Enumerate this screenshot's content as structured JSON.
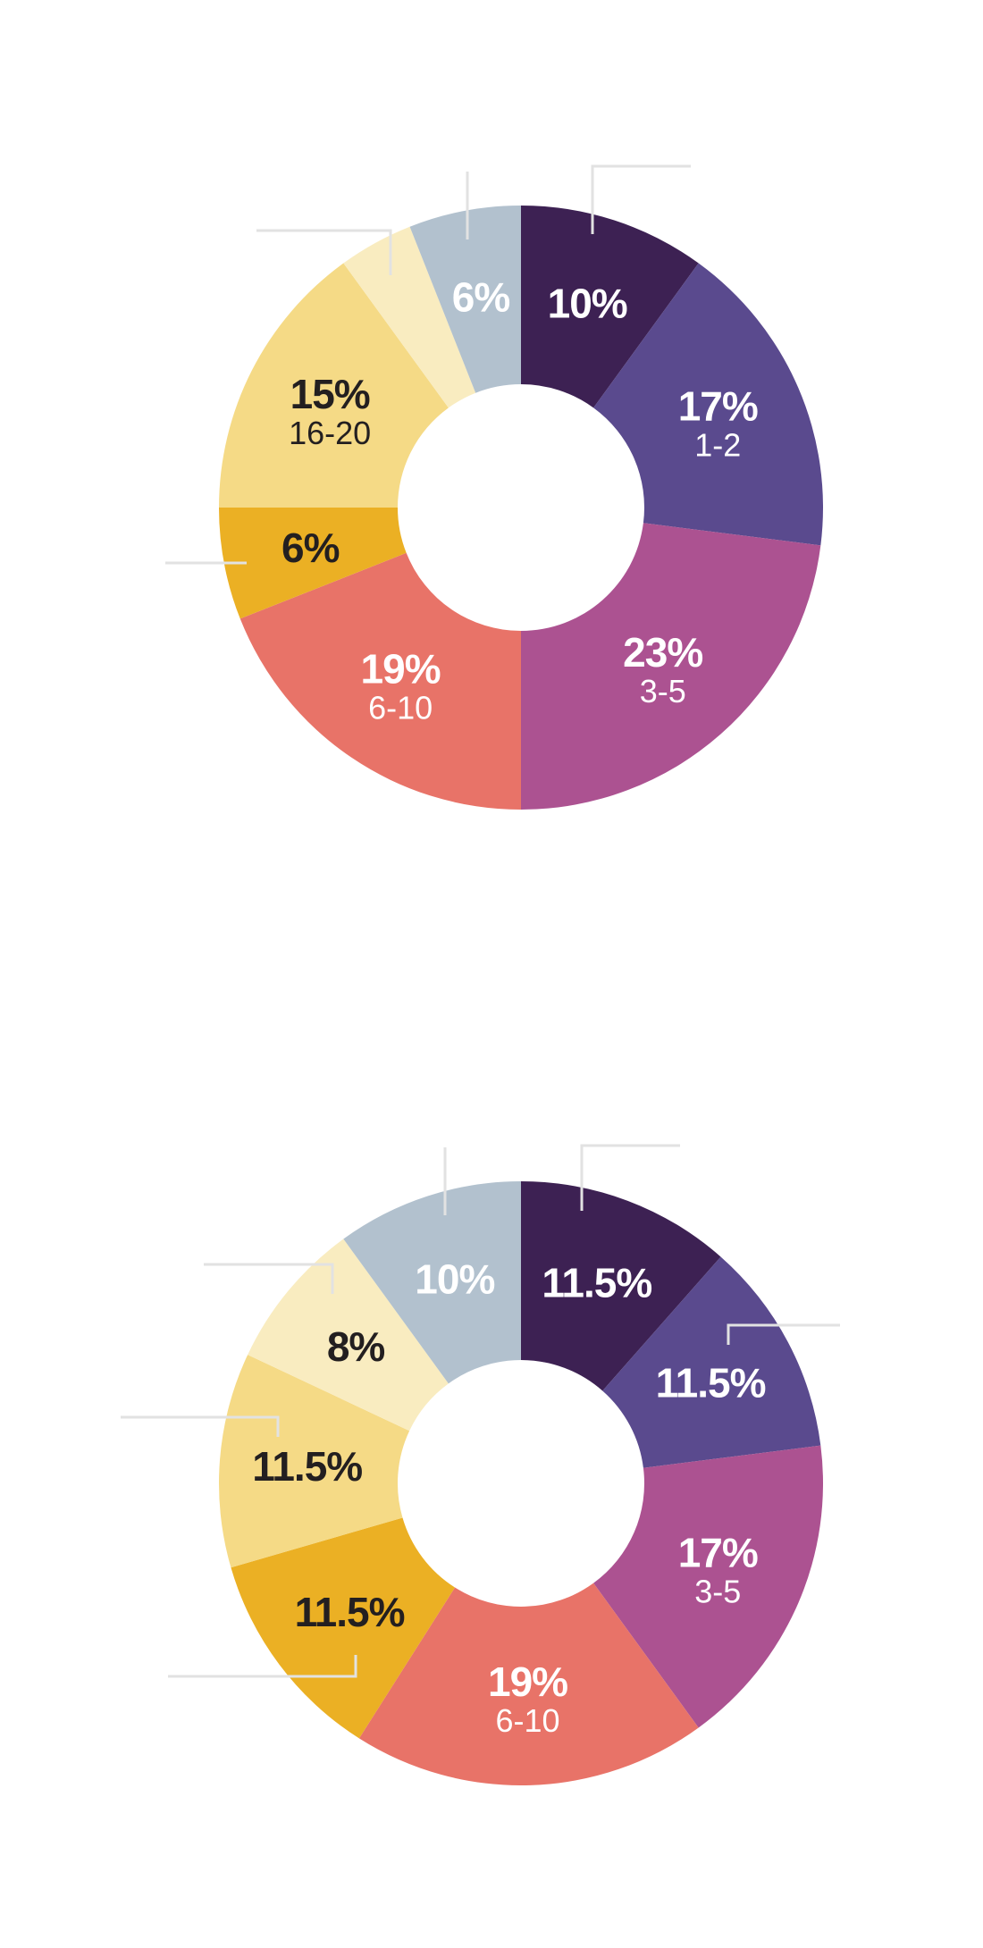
{
  "colors": {
    "dark_purple": "#3d2153",
    "purple": "#5a4a8e",
    "magenta": "#ac5291",
    "coral": "#e87368",
    "gold": "#ebb024",
    "yellow": "#f5da86",
    "pale_yellow": "#f9ecc0",
    "gray_blue": "#b2c1ce",
    "text_light": "#ffffff",
    "text_dark": "#231f20",
    "leader": "#e2e2e2"
  },
  "chart_data": [
    {
      "type": "pie",
      "donut": true,
      "legend": "none",
      "slices": [
        {
          "value": 10,
          "pct_label": "10%",
          "range_label": "",
          "color": "#3d2153",
          "text_color": "#ffffff"
        },
        {
          "value": 17,
          "pct_label": "17%",
          "range_label": "1-2",
          "color": "#5a4a8e",
          "text_color": "#ffffff"
        },
        {
          "value": 23,
          "pct_label": "23%",
          "range_label": "3-5",
          "color": "#ac5291",
          "text_color": "#ffffff"
        },
        {
          "value": 19,
          "pct_label": "19%",
          "range_label": "6-10",
          "color": "#e87368",
          "text_color": "#ffffff"
        },
        {
          "value": 6,
          "pct_label": "6%",
          "range_label": "",
          "color": "#ebb024",
          "text_color": "#231f20"
        },
        {
          "value": 15,
          "pct_label": "15%",
          "range_label": "16-20",
          "color": "#f5da86",
          "text_color": "#231f20"
        },
        {
          "value": 4,
          "pct_label": "",
          "range_label": "",
          "color": "#f9ecc0",
          "text_color": "#231f20"
        },
        {
          "value": 6,
          "pct_label": "6%",
          "range_label": "",
          "color": "#b2c1ce",
          "text_color": "#ffffff"
        }
      ]
    },
    {
      "type": "pie",
      "donut": true,
      "legend": "none",
      "slices": [
        {
          "value": 11.5,
          "pct_label": "11.5%",
          "range_label": "",
          "color": "#3d2153",
          "text_color": "#ffffff"
        },
        {
          "value": 11.5,
          "pct_label": "11.5%",
          "range_label": "",
          "color": "#5a4a8e",
          "text_color": "#ffffff"
        },
        {
          "value": 17,
          "pct_label": "17%",
          "range_label": "3-5",
          "color": "#ac5291",
          "text_color": "#ffffff"
        },
        {
          "value": 19,
          "pct_label": "19%",
          "range_label": "6-10",
          "color": "#e87368",
          "text_color": "#ffffff"
        },
        {
          "value": 11.5,
          "pct_label": "11.5%",
          "range_label": "",
          "color": "#ebb024",
          "text_color": "#231f20"
        },
        {
          "value": 11.5,
          "pct_label": "11.5%",
          "range_label": "",
          "color": "#f5da86",
          "text_color": "#231f20"
        },
        {
          "value": 8,
          "pct_label": "8%",
          "range_label": "",
          "color": "#f9ecc0",
          "text_color": "#231f20"
        },
        {
          "value": 10,
          "pct_label": "10%",
          "range_label": "",
          "color": "#b2c1ce",
          "text_color": "#ffffff"
        }
      ]
    }
  ]
}
